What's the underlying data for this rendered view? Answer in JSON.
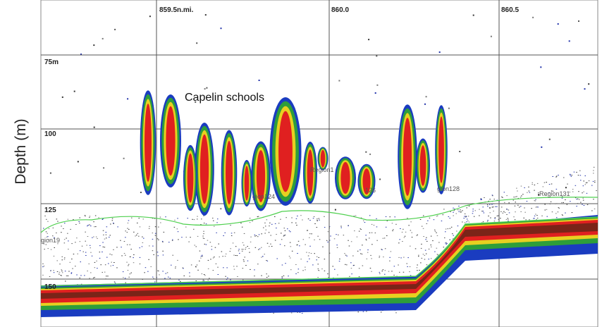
{
  "y_axis_label": "Depth (m)",
  "depth_ticks": [
    "75m",
    "100",
    "125",
    "150"
  ],
  "distance_ticks": [
    "859.5n.mi.",
    "860.0",
    "860.5"
  ],
  "annotation": "Capelin schools",
  "region_labels": [
    "gion19",
    "Region1",
    "gion124",
    "126",
    "gion128",
    "Region131"
  ]
}
